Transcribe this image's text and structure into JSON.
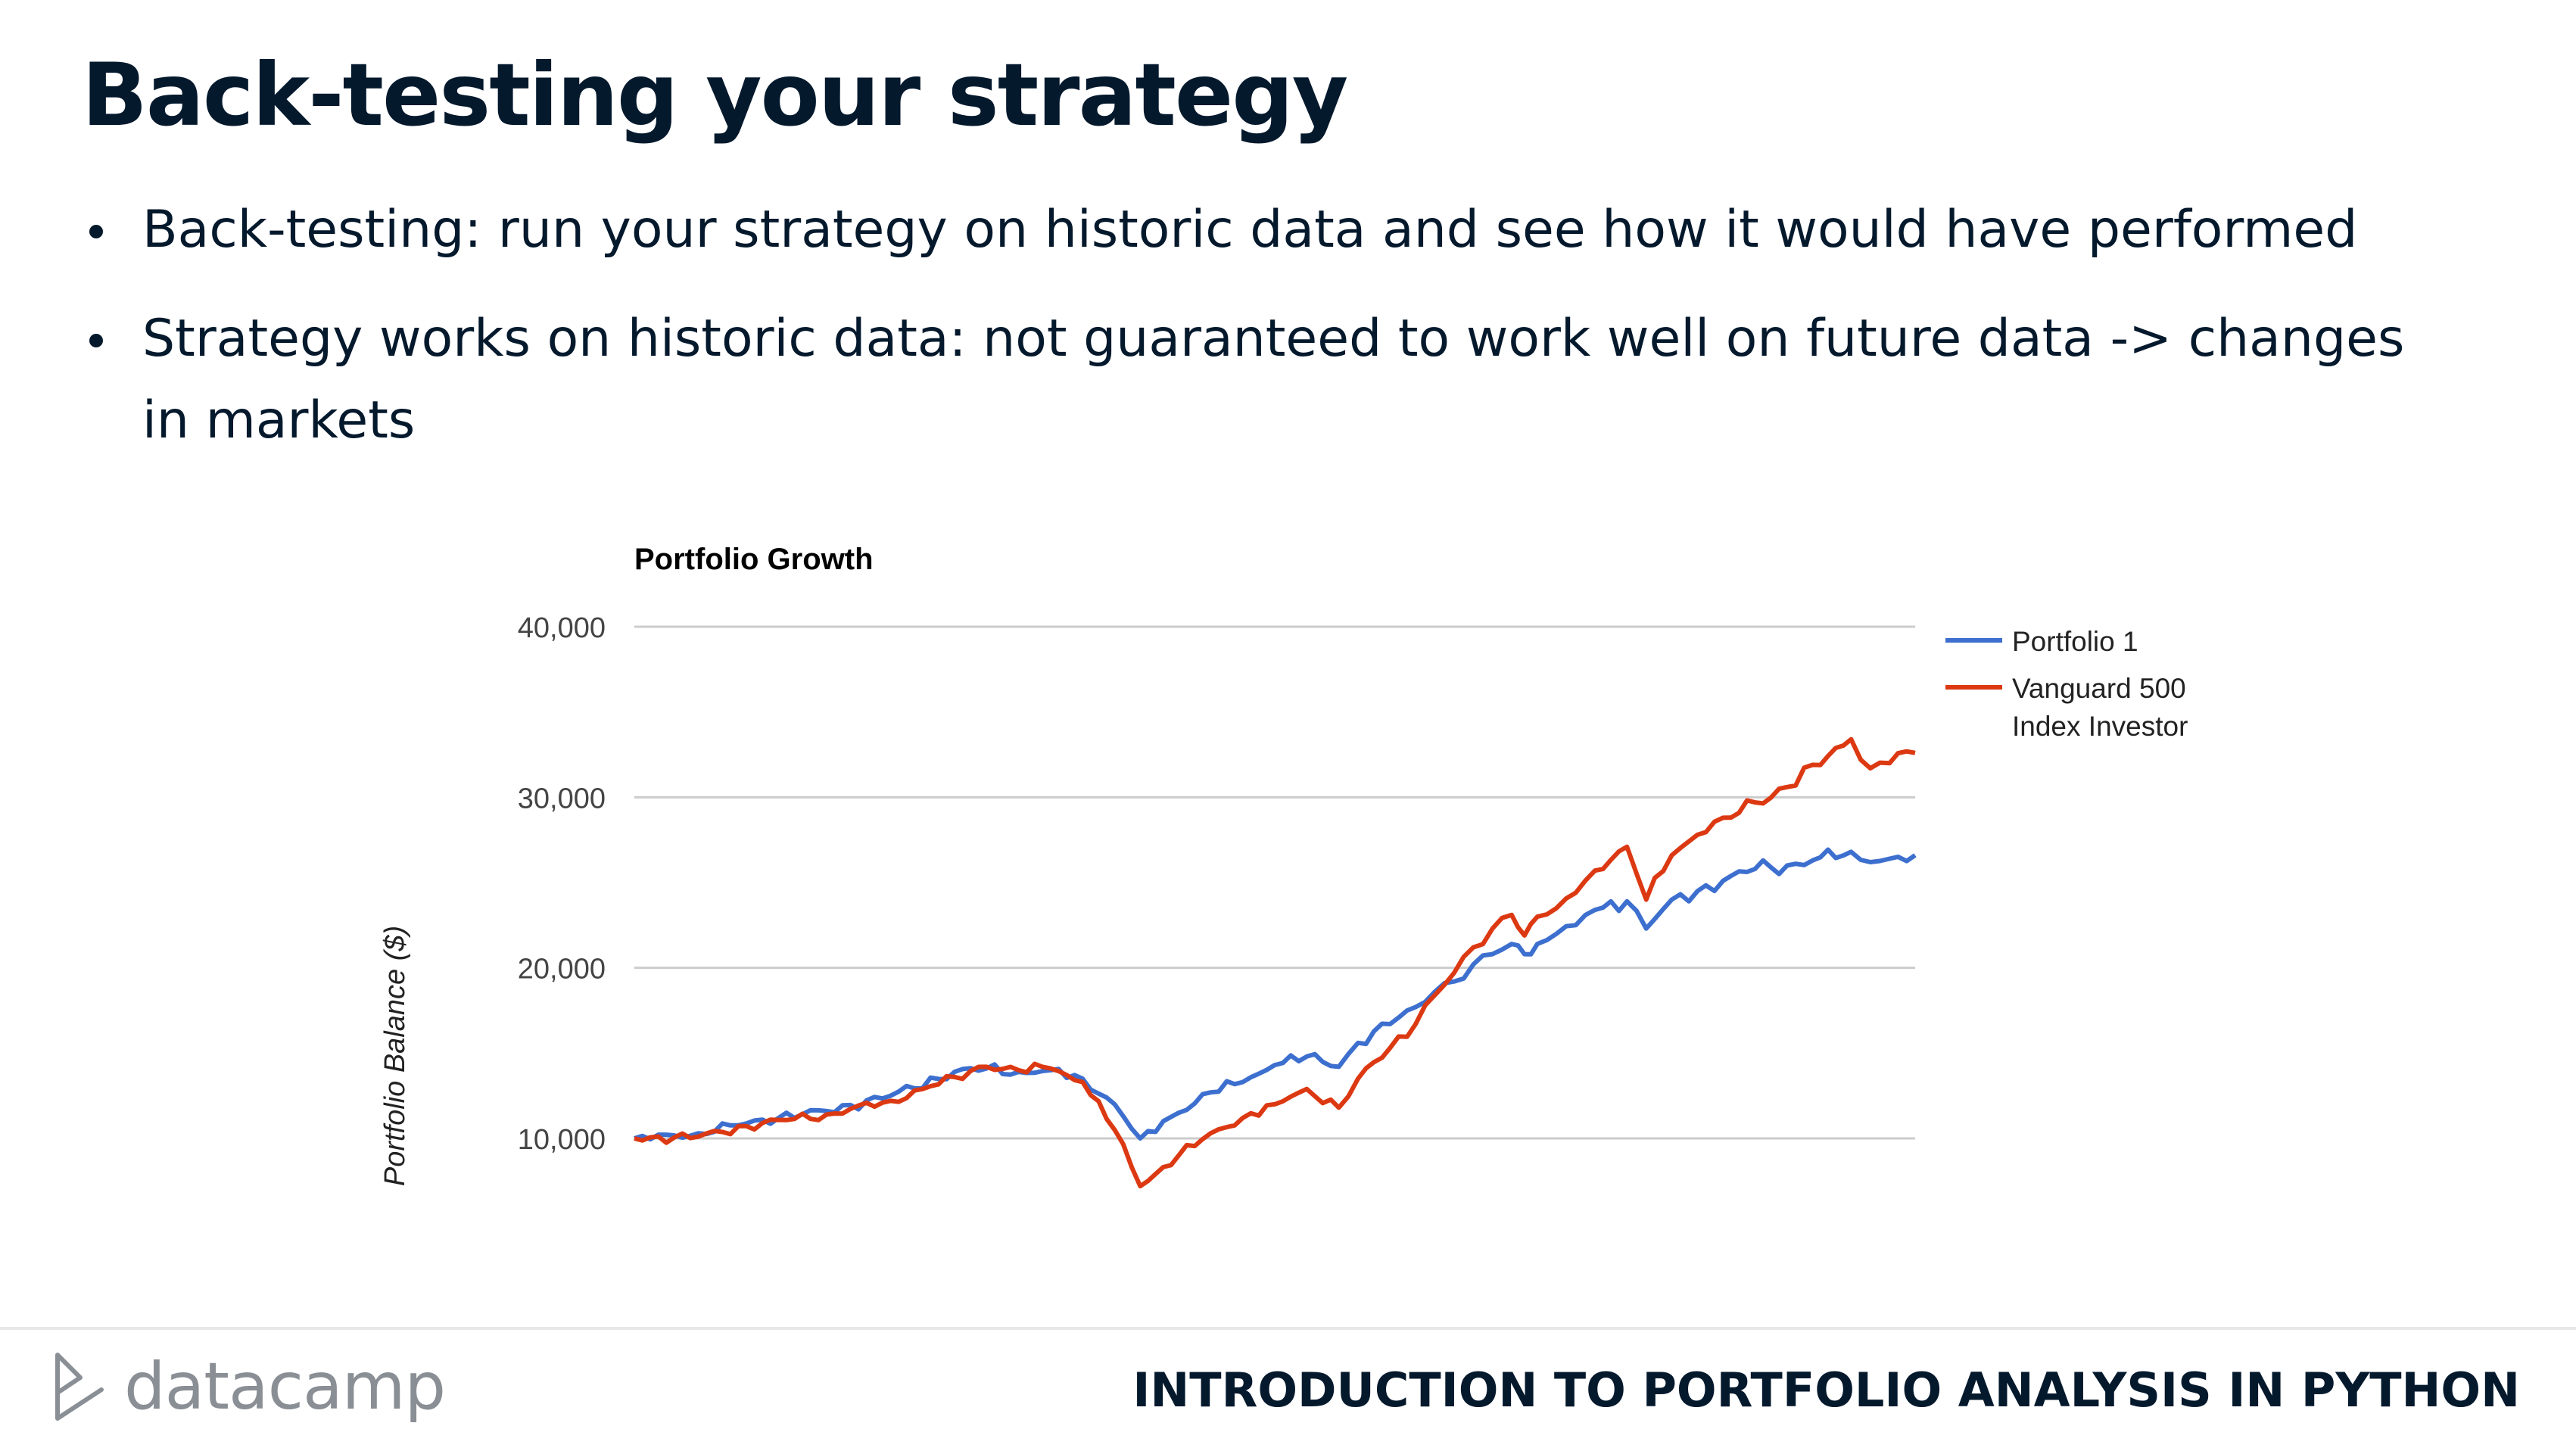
{
  "slide": {
    "title": "Back-testing your strategy",
    "bullets": [
      "Back-testing: run your strategy on historic data and see how it would have performed",
      "Strategy works on historic data: not guaranteed to work well on future data -> changes in markets"
    ]
  },
  "footer": {
    "logo_text": "datacamp",
    "course": "INTRODUCTION TO PORTFOLIO ANALYSIS IN PYTHON"
  },
  "chart_data": {
    "type": "line",
    "title": "Portfolio Growth",
    "xlabel": "",
    "ylabel": "Portfolio Balance ($)",
    "ylim": [
      10000,
      40000
    ],
    "yticks": [
      "10,000",
      "20,000",
      "30,000",
      "40,000"
    ],
    "ytick_values": [
      10000,
      20000,
      30000,
      40000
    ],
    "grid": true,
    "legend_position": "right",
    "x_points": 151,
    "series": [
      {
        "name": "Portfolio 1",
        "legend_lines": [
          "Portfolio 1"
        ],
        "color": "#3d6fcf",
        "anchors": [
          [
            0,
            10000
          ],
          [
            10,
            10300
          ],
          [
            20,
            11100
          ],
          [
            30,
            11600
          ],
          [
            40,
            12500
          ],
          [
            50,
            13900
          ],
          [
            55,
            14100
          ],
          [
            60,
            13900
          ],
          [
            65,
            14000
          ],
          [
            70,
            13500
          ],
          [
            75,
            12000
          ],
          [
            79,
            10000
          ],
          [
            85,
            11500
          ],
          [
            90,
            12700
          ],
          [
            95,
            13300
          ],
          [
            100,
            14300
          ],
          [
            105,
            14800
          ],
          [
            110,
            14200
          ],
          [
            113,
            15600
          ],
          [
            118,
            16700
          ],
          [
            122,
            17700
          ],
          [
            125,
            18600
          ],
          [
            128,
            19200
          ],
          [
            131,
            20200
          ],
          [
            134,
            20800
          ],
          [
            137,
            21400
          ],
          [
            139,
            20800
          ],
          [
            141,
            21400
          ],
          [
            144,
            22000
          ],
          [
            147,
            22500
          ],
          [
            150,
            23400
          ],
          [
            155,
            23900
          ],
          [
            158,
            22300
          ],
          [
            162,
            24000
          ],
          [
            166,
            24500
          ],
          [
            170,
            25100
          ],
          [
            175,
            25800
          ],
          [
            180,
            26000
          ],
          [
            184,
            26300
          ],
          [
            190,
            26800
          ],
          [
            193,
            26200
          ],
          [
            196,
            26400
          ],
          [
            200,
            26600
          ]
        ]
      },
      {
        "name": "Vanguard 500 Index Investor",
        "legend_lines": [
          "Vanguard 500",
          "Index Investor"
        ],
        "color": "#dc3912",
        "anchors": [
          [
            0,
            10000
          ],
          [
            10,
            10100
          ],
          [
            20,
            10900
          ],
          [
            30,
            11400
          ],
          [
            40,
            12200
          ],
          [
            50,
            13600
          ],
          [
            55,
            14200
          ],
          [
            60,
            14000
          ],
          [
            65,
            14100
          ],
          [
            70,
            13300
          ],
          [
            75,
            10500
          ],
          [
            79,
            7200
          ],
          [
            85,
            9000
          ],
          [
            90,
            10300
          ],
          [
            95,
            11200
          ],
          [
            100,
            12000
          ],
          [
            105,
            12900
          ],
          [
            110,
            11800
          ],
          [
            113,
            13500
          ],
          [
            118,
            15300
          ],
          [
            122,
            16700
          ],
          [
            125,
            18400
          ],
          [
            128,
            19700
          ],
          [
            131,
            21200
          ],
          [
            134,
            22300
          ],
          [
            137,
            23100
          ],
          [
            139,
            21900
          ],
          [
            141,
            23000
          ],
          [
            144,
            23500
          ],
          [
            147,
            24400
          ],
          [
            150,
            25700
          ],
          [
            155,
            27100
          ],
          [
            158,
            24000
          ],
          [
            162,
            26600
          ],
          [
            166,
            27800
          ],
          [
            170,
            28800
          ],
          [
            175,
            29700
          ],
          [
            180,
            30600
          ],
          [
            184,
            31900
          ],
          [
            190,
            33400
          ],
          [
            193,
            31700
          ],
          [
            196,
            32000
          ],
          [
            200,
            32600
          ]
        ]
      }
    ]
  }
}
